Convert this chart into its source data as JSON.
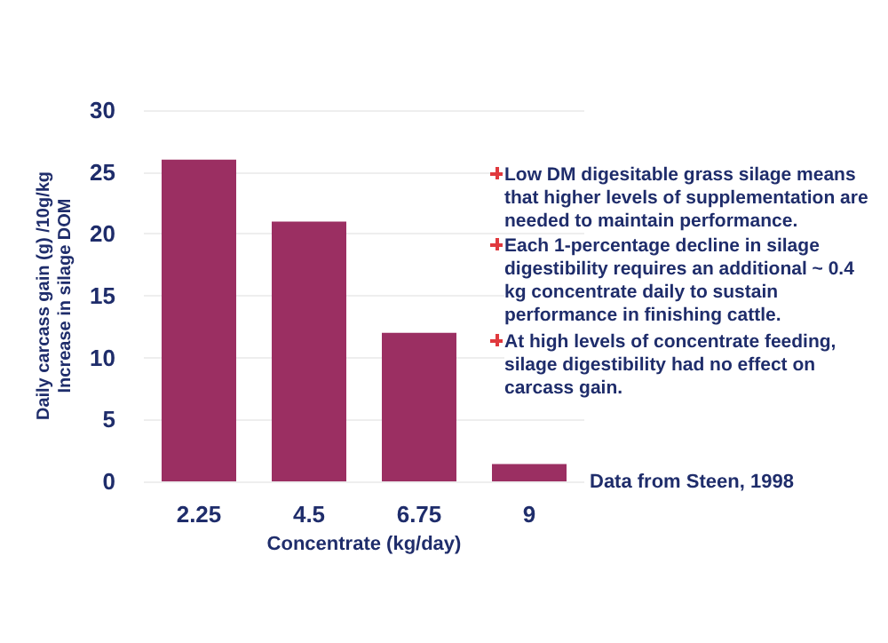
{
  "chart_data": {
    "type": "bar",
    "xlabel": "Concentrate (kg/day)",
    "ylabel": "Daily carcass gain (g) /10g/kg\nIncrease in silage DOM",
    "categories": [
      "2.25",
      "4.5",
      "6.75",
      "9"
    ],
    "values": [
      26,
      21,
      12,
      1.4
    ],
    "color": "#9b2f62",
    "ylim": [
      0,
      30
    ],
    "yticks": [
      0,
      5,
      10,
      15,
      20,
      25,
      30
    ],
    "grid": "y",
    "annotations": [
      "Low DM digesitable grass silage means that higher levels of supplementation are needed to maintain performance.",
      "Each 1-percentage decline in silage digestibility requires an additional ~ 0.4 kg concentrate daily to sustain performance in finishing cattle.",
      "At high levels of concentrate feeding, silage digestibility had no effect on carcass gain.",
      "Data from Steen, 1998"
    ]
  }
}
